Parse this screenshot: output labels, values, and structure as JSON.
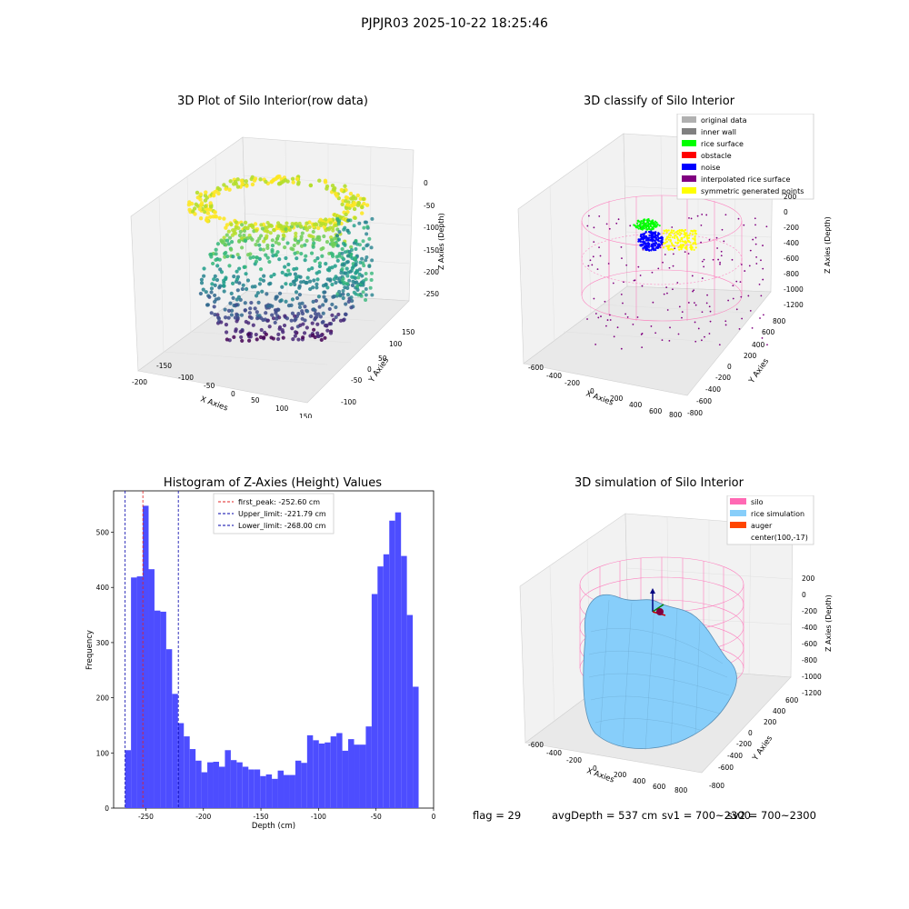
{
  "figure": {
    "suptitle": "PJPJR03 2025-10-22 18:25:46",
    "footer": {
      "flag": "flag = 29",
      "avg": "avgDepth = 537 cm",
      "sv1": "sv1 = 700~2300",
      "sv2": "sv2 = 700~2300"
    }
  },
  "colors": {
    "hist_bar": "#4d4dff",
    "first_peak_line": "#e02020",
    "limit_line": "#0000aa",
    "silo": "#ff69b4",
    "rice": "#87cefa",
    "auger": "#ff4500",
    "original": "#b0b0b0",
    "inner_wall": "#808080",
    "rice_surface": "#00ff00",
    "obstacle": "#ff0000",
    "noise": "#0000ff",
    "interpolated": "#800080",
    "symmetric": "#ffff00"
  },
  "chart_data": [
    {
      "type": "scatter",
      "title": "3D Plot of Silo Interior(row data)",
      "xlabel": "X Axies",
      "ylabel": "Y Axies",
      "zlabel": "Z Axies (Depth)",
      "xticks": [
        "-200",
        "-150",
        "-100",
        "-50",
        "0",
        "50",
        "100",
        "150"
      ],
      "yticks": [
        "-100",
        "-50",
        "0",
        "50",
        "100",
        "150"
      ],
      "zticks": [
        "0",
        "-50",
        "-100",
        "-150",
        "-200",
        "-250"
      ]
    },
    {
      "type": "scatter",
      "title": "3D classify of Silo Interior",
      "xlabel": "X Axies",
      "ylabel": "Y Axies",
      "zlabel": "Z Axies (Depth)",
      "xticks": [
        "-600",
        "-400",
        "-200",
        "0",
        "200",
        "400",
        "600",
        "800"
      ],
      "yticks": [
        "-800",
        "-600",
        "-400",
        "-200",
        "0",
        "200",
        "400",
        "600",
        "800"
      ],
      "zticks": [
        "200",
        "0",
        "-200",
        "-400",
        "-600",
        "-800",
        "-1000",
        "-1200"
      ],
      "legend": [
        "original data",
        "inner wall",
        "rice surface",
        "obstacle",
        "noise",
        "interpolated rice surface",
        "symmetric generated points"
      ],
      "legend_position": "top-right"
    },
    {
      "type": "bar",
      "title": "Histogram of Z-Axies (Height) Values",
      "xlabel": "Depth (cm)",
      "ylabel": "Frequency",
      "bin_start": -268,
      "bin_width": 5.1,
      "values": [
        105,
        418,
        420,
        548,
        433,
        358,
        356,
        288,
        207,
        154,
        130,
        107,
        86,
        65,
        83,
        84,
        75,
        105,
        87,
        83,
        75,
        70,
        70,
        58,
        61,
        53,
        68,
        60,
        60,
        86,
        82,
        132,
        123,
        117,
        119,
        130,
        136,
        104,
        125,
        115,
        115,
        148,
        388,
        438,
        460,
        521,
        536,
        457,
        350,
        220
      ],
      "xlim": [
        -278,
        0
      ],
      "ylim": [
        0,
        575
      ],
      "xticks": [
        -250,
        -200,
        -150,
        -100,
        -50,
        0
      ],
      "yticks": [
        0,
        100,
        200,
        300,
        400,
        500
      ],
      "vlines": [
        {
          "label": "first_peak: -252.60 cm",
          "x": -252.6,
          "style": "red"
        },
        {
          "label": "Upper_limit: -221.79 cm",
          "x": -221.79,
          "style": "blue"
        },
        {
          "label": "Lower_limit: -268.00 cm",
          "x": -268.0,
          "style": "blue"
        }
      ],
      "legend_position": "upper center"
    },
    {
      "type": "scatter",
      "title": "3D simulation of Silo Interior",
      "xlabel": "X Axies",
      "ylabel": "Y Axies",
      "zlabel": "Z Axies (Depth)",
      "xticks": [
        "-600",
        "-400",
        "-200",
        "0",
        "200",
        "400",
        "600",
        "800"
      ],
      "yticks": [
        "-800",
        "-600",
        "-400",
        "-200",
        "0",
        "200",
        "400",
        "600"
      ],
      "zticks": [
        "200",
        "0",
        "-200",
        "-400",
        "-600",
        "-800",
        "-1000",
        "-1200"
      ],
      "legend": [
        "silo",
        "rice simulation",
        "auger",
        "center(100,-17)"
      ],
      "legend_position": "top-right"
    }
  ]
}
